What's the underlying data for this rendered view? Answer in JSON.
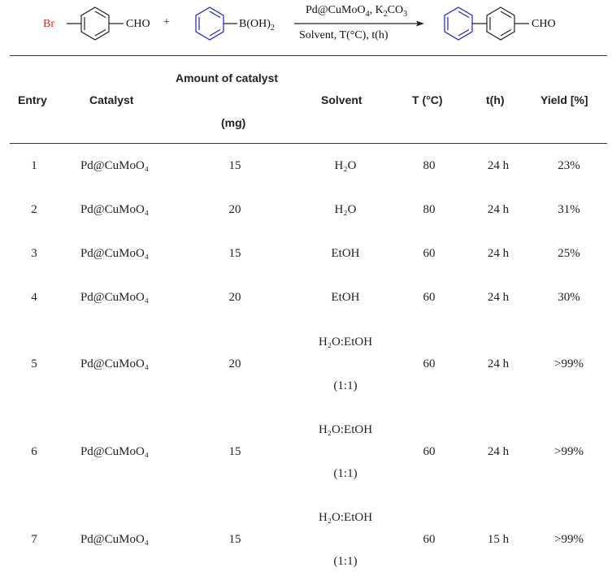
{
  "scheme": {
    "reactant1_br": "Br",
    "reactant1_cho": "CHO",
    "plus": "+",
    "reactant2_boh": "B(OH)",
    "reactant2_sub": "2",
    "conditions_top": "Pd@CuMoO",
    "conditions_top_sub": "4",
    "conditions_top_rest": ", K",
    "conditions_top_sub2": "2",
    "conditions_top_end": "CO",
    "conditions_top_sub3": "3",
    "conditions_bottom": "Solvent, T(°C), t(h)",
    "product_cho": "CHO",
    "colors": {
      "bromine": "#e8261f",
      "boronic_ring": "#2020c8",
      "product_ring": "#2020c8",
      "bonds": "#222222"
    }
  },
  "table": {
    "headers": {
      "entry": "Entry",
      "catalyst": "Catalyst",
      "amount_line1": "Amount of catalyst",
      "amount_line2": "(mg)",
      "solvent": "Solvent",
      "temperature": "T (°C)",
      "time": "t(h)",
      "yield": "Yield [%]"
    },
    "rows": [
      {
        "entry": "1",
        "catalyst": "Pd@CuMoO₄",
        "amount": "15",
        "solvent": "H₂O",
        "solvent2": "",
        "temp": "80",
        "time": "24 h",
        "yield": "23%"
      },
      {
        "entry": "2",
        "catalyst": "Pd@CuMoO₄",
        "amount": "20",
        "solvent": "H₂O",
        "solvent2": "",
        "temp": "80",
        "time": "24 h",
        "yield": "31%"
      },
      {
        "entry": "3",
        "catalyst": "Pd@CuMoO₄",
        "amount": "15",
        "solvent": "EtOH",
        "solvent2": "",
        "temp": "60",
        "time": "24 h",
        "yield": "25%"
      },
      {
        "entry": "4",
        "catalyst": "Pd@CuMoO₄",
        "amount": "20",
        "solvent": "EtOH",
        "solvent2": "",
        "temp": "60",
        "time": "24 h",
        "yield": "30%"
      },
      {
        "entry": "5",
        "catalyst": "Pd@CuMoO₄",
        "amount": "20",
        "solvent": "H₂O:EtOH",
        "solvent2": "(1:1)",
        "temp": "60",
        "time": "24 h",
        "yield": ">99%"
      },
      {
        "entry": "6",
        "catalyst": "Pd@CuMoO₄",
        "amount": "15",
        "solvent": "H₂O:EtOH",
        "solvent2": "(1:1)",
        "temp": "60",
        "time": "24 h",
        "yield": ">99%"
      },
      {
        "entry": "7",
        "catalyst": "Pd@CuMoO₄",
        "amount": "15",
        "solvent": "H₂O:EtOH",
        "solvent2": "(1:1)",
        "temp": "60",
        "time": "15 h",
        "yield": ">99%"
      }
    ]
  }
}
